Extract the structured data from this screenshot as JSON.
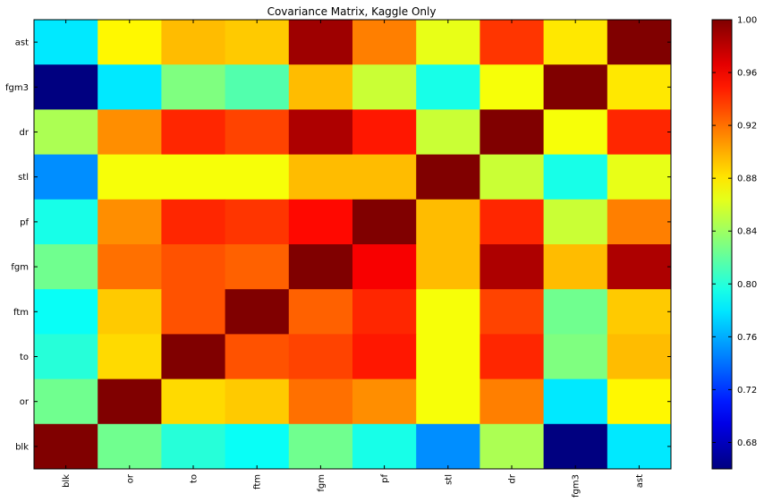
{
  "chart_data": {
    "type": "heatmap",
    "title": "Covariance Matrix, Kaggle Only",
    "x_categories": [
      "blk",
      "or",
      "to",
      "ftm",
      "fgm",
      "pf",
      "stl",
      "dr",
      "fgm3",
      "ast"
    ],
    "y_categories_top_to_bottom": [
      "ast",
      "fgm3",
      "dr",
      "stl",
      "pf",
      "fgm",
      "ftm",
      "to",
      "or",
      "blk"
    ],
    "values_top_to_bottom": [
      [
        0.78,
        0.875,
        0.895,
        0.89,
        0.99,
        0.915,
        0.865,
        0.94,
        0.88,
        1.0
      ],
      [
        0.66,
        0.78,
        0.83,
        0.815,
        0.895,
        0.855,
        0.795,
        0.87,
        1.0,
        0.88
      ],
      [
        0.845,
        0.91,
        0.945,
        0.935,
        0.985,
        0.95,
        0.855,
        1.0,
        0.87,
        0.945
      ],
      [
        0.75,
        0.87,
        0.87,
        0.87,
        0.895,
        0.895,
        1.0,
        0.855,
        0.795,
        0.865
      ],
      [
        0.795,
        0.91,
        0.945,
        0.94,
        0.955,
        1.0,
        0.895,
        0.945,
        0.855,
        0.915
      ],
      [
        0.825,
        0.92,
        0.93,
        0.925,
        1.0,
        0.96,
        0.895,
        0.985,
        0.895,
        0.985
      ],
      [
        0.79,
        0.89,
        0.93,
        1.0,
        0.925,
        0.945,
        0.87,
        0.935,
        0.825,
        0.89
      ],
      [
        0.8,
        0.885,
        1.0,
        0.93,
        0.935,
        0.95,
        0.87,
        0.945,
        0.83,
        0.895
      ],
      [
        0.825,
        1.0,
        0.885,
        0.89,
        0.92,
        0.91,
        0.87,
        0.915,
        0.78,
        0.875
      ],
      [
        1.0,
        0.825,
        0.8,
        0.79,
        0.825,
        0.795,
        0.75,
        0.845,
        0.66,
        0.78
      ]
    ],
    "colorbar": {
      "min": 0.66,
      "max": 1.0,
      "ticks": [
        "0.68",
        "0.72",
        "0.76",
        "0.80",
        "0.84",
        "0.88",
        "0.92",
        "0.96",
        "1.00"
      ],
      "colormap": "jet"
    },
    "grid": false,
    "legend": "colorbar-right"
  }
}
